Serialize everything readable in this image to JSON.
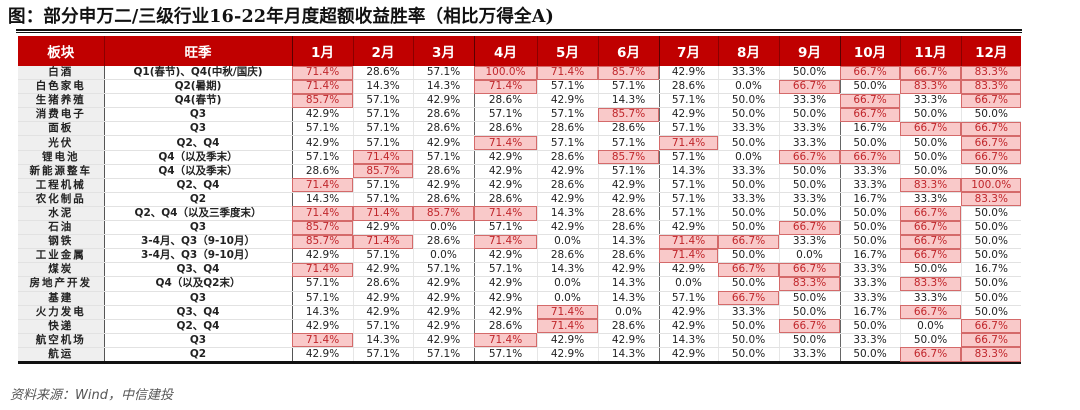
{
  "title": "图：部分申万二/三级行业16-22年月度超额收益胜率（相比万得全A)",
  "source": "资料来源：Wind，中信建投",
  "colors": {
    "header_bg": "#c00000",
    "header_text": "#ffffff",
    "highlight_bg": "#f9c9c9",
    "highlight_text": "#c0262b",
    "sector_bg": "#efefef"
  },
  "table": {
    "headers": [
      "板块",
      "旺季",
      "1月",
      "2月",
      "3月",
      "4月",
      "5月",
      "6月",
      "7月",
      "8月",
      "9月",
      "10月",
      "11月",
      "12月"
    ],
    "highlight_rule": "月度胜率 > 60% 标红",
    "rows": [
      {
        "sector": "白酒",
        "season": "Q1(春节)、Q4(中秋/国庆)",
        "values": [
          "71.4%",
          "28.6%",
          "57.1%",
          "100.0%",
          "71.4%",
          "85.7%",
          "42.9%",
          "33.3%",
          "50.0%",
          "66.7%",
          "66.7%",
          "83.3%"
        ],
        "hl": [
          1,
          0,
          0,
          1,
          1,
          1,
          0,
          0,
          0,
          1,
          1,
          1
        ]
      },
      {
        "sector": "白色家电",
        "season": "Q2(暑期)",
        "values": [
          "71.4%",
          "14.3%",
          "14.3%",
          "71.4%",
          "57.1%",
          "57.1%",
          "28.6%",
          "0.0%",
          "66.7%",
          "50.0%",
          "83.3%",
          "83.3%"
        ],
        "hl": [
          1,
          0,
          0,
          1,
          0,
          0,
          0,
          0,
          1,
          0,
          1,
          1
        ]
      },
      {
        "sector": "生猪养殖",
        "season": "Q4(春节)",
        "values": [
          "85.7%",
          "57.1%",
          "42.9%",
          "28.6%",
          "42.9%",
          "14.3%",
          "57.1%",
          "50.0%",
          "33.3%",
          "66.7%",
          "33.3%",
          "66.7%"
        ],
        "hl": [
          1,
          0,
          0,
          0,
          0,
          0,
          0,
          0,
          0,
          1,
          0,
          1
        ]
      },
      {
        "sector": "消费电子",
        "season": "Q3",
        "values": [
          "42.9%",
          "57.1%",
          "28.6%",
          "57.1%",
          "57.1%",
          "85.7%",
          "42.9%",
          "50.0%",
          "50.0%",
          "66.7%",
          "50.0%",
          "50.0%"
        ],
        "hl": [
          0,
          0,
          0,
          0,
          0,
          1,
          0,
          0,
          0,
          1,
          0,
          0
        ]
      },
      {
        "sector": "面板",
        "season": "Q3",
        "values": [
          "57.1%",
          "57.1%",
          "28.6%",
          "28.6%",
          "28.6%",
          "28.6%",
          "57.1%",
          "33.3%",
          "33.3%",
          "16.7%",
          "66.7%",
          "66.7%"
        ],
        "hl": [
          0,
          0,
          0,
          0,
          0,
          0,
          0,
          0,
          0,
          0,
          1,
          1
        ]
      },
      {
        "sector": "光伏",
        "season": "Q2、Q4",
        "values": [
          "42.9%",
          "57.1%",
          "42.9%",
          "71.4%",
          "57.1%",
          "57.1%",
          "71.4%",
          "50.0%",
          "33.3%",
          "50.0%",
          "50.0%",
          "66.7%"
        ],
        "hl": [
          0,
          0,
          0,
          1,
          0,
          0,
          1,
          0,
          0,
          0,
          0,
          1
        ]
      },
      {
        "sector": "锂电池",
        "season": "Q4（以及季末）",
        "values": [
          "57.1%",
          "71.4%",
          "57.1%",
          "42.9%",
          "28.6%",
          "85.7%",
          "57.1%",
          "0.0%",
          "66.7%",
          "66.7%",
          "50.0%",
          "66.7%"
        ],
        "hl": [
          0,
          1,
          0,
          0,
          0,
          1,
          0,
          0,
          1,
          1,
          0,
          1
        ]
      },
      {
        "sector": "新能源整车",
        "season": "Q4（以及季末）",
        "values": [
          "28.6%",
          "85.7%",
          "28.6%",
          "42.9%",
          "42.9%",
          "57.1%",
          "14.3%",
          "33.3%",
          "50.0%",
          "33.3%",
          "50.0%",
          "50.0%"
        ],
        "hl": [
          0,
          1,
          0,
          0,
          0,
          0,
          0,
          0,
          0,
          0,
          0,
          0
        ]
      },
      {
        "sector": "工程机械",
        "season": "Q2、Q4",
        "values": [
          "71.4%",
          "57.1%",
          "42.9%",
          "42.9%",
          "28.6%",
          "42.9%",
          "57.1%",
          "50.0%",
          "50.0%",
          "33.3%",
          "83.3%",
          "100.0%"
        ],
        "hl": [
          1,
          0,
          0,
          0,
          0,
          0,
          0,
          0,
          0,
          0,
          1,
          1
        ]
      },
      {
        "sector": "农化制品",
        "season": "Q2",
        "values": [
          "14.3%",
          "57.1%",
          "28.6%",
          "28.6%",
          "42.9%",
          "42.9%",
          "57.1%",
          "33.3%",
          "33.3%",
          "16.7%",
          "33.3%",
          "83.3%"
        ],
        "hl": [
          0,
          0,
          0,
          0,
          0,
          0,
          0,
          0,
          0,
          0,
          0,
          1
        ]
      },
      {
        "sector": "水泥",
        "season": "Q2、Q4（以及三季度末）",
        "values": [
          "71.4%",
          "71.4%",
          "85.7%",
          "71.4%",
          "14.3%",
          "28.6%",
          "57.1%",
          "50.0%",
          "50.0%",
          "50.0%",
          "66.7%",
          "50.0%"
        ],
        "hl": [
          1,
          1,
          1,
          1,
          0,
          0,
          0,
          0,
          0,
          0,
          1,
          0
        ]
      },
      {
        "sector": "石油",
        "season": "Q3",
        "values": [
          "85.7%",
          "42.9%",
          "0.0%",
          "57.1%",
          "42.9%",
          "28.6%",
          "42.9%",
          "50.0%",
          "66.7%",
          "50.0%",
          "66.7%",
          "50.0%"
        ],
        "hl": [
          1,
          0,
          0,
          0,
          0,
          0,
          0,
          0,
          1,
          0,
          1,
          0
        ]
      },
      {
        "sector": "钢铁",
        "season": "3-4月、Q3（9-10月）",
        "values": [
          "85.7%",
          "71.4%",
          "28.6%",
          "71.4%",
          "0.0%",
          "14.3%",
          "71.4%",
          "66.7%",
          "33.3%",
          "50.0%",
          "66.7%",
          "50.0%"
        ],
        "hl": [
          1,
          1,
          0,
          1,
          0,
          0,
          1,
          1,
          0,
          0,
          1,
          0
        ]
      },
      {
        "sector": "工业金属",
        "season": "3-4月、Q3（9-10月）",
        "values": [
          "42.9%",
          "57.1%",
          "0.0%",
          "42.9%",
          "28.6%",
          "28.6%",
          "71.4%",
          "50.0%",
          "0.0%",
          "16.7%",
          "66.7%",
          "50.0%"
        ],
        "hl": [
          0,
          0,
          0,
          0,
          0,
          0,
          1,
          0,
          0,
          0,
          1,
          0
        ]
      },
      {
        "sector": "煤炭",
        "season": "Q3、Q4",
        "values": [
          "71.4%",
          "42.9%",
          "57.1%",
          "57.1%",
          "14.3%",
          "42.9%",
          "42.9%",
          "66.7%",
          "66.7%",
          "33.3%",
          "50.0%",
          "16.7%"
        ],
        "hl": [
          1,
          0,
          0,
          0,
          0,
          0,
          0,
          1,
          1,
          0,
          0,
          0
        ]
      },
      {
        "sector": "房地产开发",
        "season": "Q4（以及Q2末）",
        "values": [
          "57.1%",
          "28.6%",
          "42.9%",
          "42.9%",
          "0.0%",
          "14.3%",
          "0.0%",
          "50.0%",
          "83.3%",
          "33.3%",
          "83.3%",
          "50.0%"
        ],
        "hl": [
          0,
          0,
          0,
          0,
          0,
          0,
          0,
          0,
          1,
          0,
          1,
          0
        ]
      },
      {
        "sector": "基建",
        "season": "Q3",
        "values": [
          "57.1%",
          "42.9%",
          "42.9%",
          "42.9%",
          "0.0%",
          "14.3%",
          "57.1%",
          "66.7%",
          "50.0%",
          "33.3%",
          "33.3%",
          "50.0%"
        ],
        "hl": [
          0,
          0,
          0,
          0,
          0,
          0,
          0,
          1,
          0,
          0,
          0,
          0
        ]
      },
      {
        "sector": "火力发电",
        "season": "Q3、Q4",
        "values": [
          "14.3%",
          "42.9%",
          "42.9%",
          "42.9%",
          "71.4%",
          "0.0%",
          "42.9%",
          "33.3%",
          "50.0%",
          "16.7%",
          "66.7%",
          "50.0%"
        ],
        "hl": [
          0,
          0,
          0,
          0,
          1,
          0,
          0,
          0,
          0,
          0,
          1,
          0
        ]
      },
      {
        "sector": "快递",
        "season": "Q2、Q4",
        "values": [
          "42.9%",
          "57.1%",
          "42.9%",
          "28.6%",
          "71.4%",
          "28.6%",
          "42.9%",
          "50.0%",
          "66.7%",
          "50.0%",
          "0.0%",
          "66.7%"
        ],
        "hl": [
          0,
          0,
          0,
          0,
          1,
          0,
          0,
          0,
          1,
          0,
          0,
          1
        ]
      },
      {
        "sector": "航空机场",
        "season": "Q3",
        "values": [
          "71.4%",
          "14.3%",
          "42.9%",
          "71.4%",
          "42.9%",
          "42.9%",
          "14.3%",
          "50.0%",
          "50.0%",
          "33.3%",
          "50.0%",
          "66.7%"
        ],
        "hl": [
          1,
          0,
          0,
          1,
          0,
          0,
          0,
          0,
          0,
          0,
          0,
          1
        ]
      },
      {
        "sector": "航运",
        "season": "Q2",
        "values": [
          "42.9%",
          "57.1%",
          "57.1%",
          "57.1%",
          "42.9%",
          "14.3%",
          "42.9%",
          "50.0%",
          "33.3%",
          "50.0%",
          "66.7%",
          "83.3%"
        ],
        "hl": [
          0,
          0,
          0,
          0,
          0,
          0,
          0,
          0,
          0,
          0,
          1,
          1
        ]
      }
    ]
  }
}
